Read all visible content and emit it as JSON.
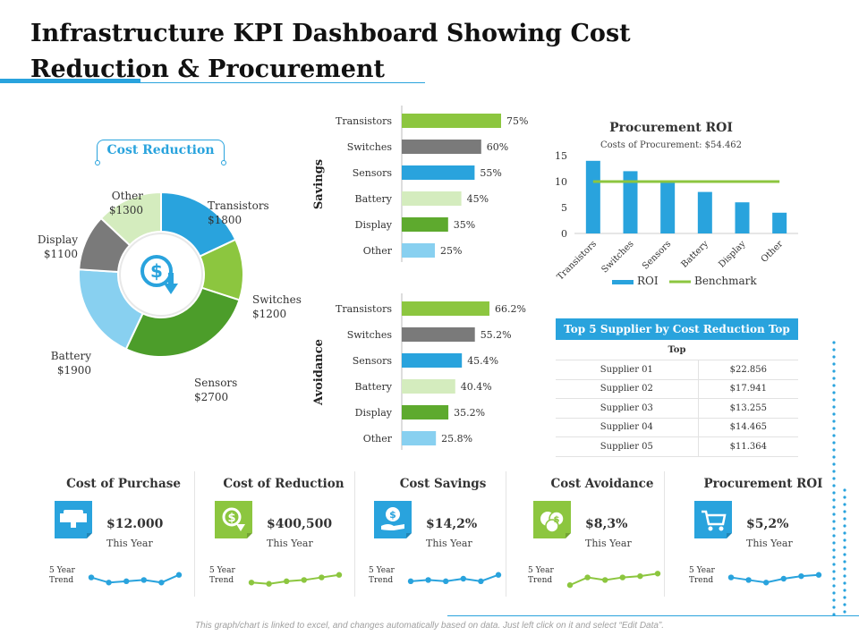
{
  "title": "Infrastructure KPI Dashboard Showing Cost Reduction & Procurement",
  "colors": {
    "blue": "#29a3dd",
    "gray": "#7a7a7a",
    "light_green": "#d4ecbe",
    "green": "#5eaa2e",
    "light_blue": "#88d0f0",
    "lime": "#8cc63f",
    "dark_green": "#4c9d2a"
  },
  "cost_reduction": {
    "label": "Cost Reduction",
    "icon": "dollar-down-icon"
  },
  "footer": "This graph/chart is linked to excel, and changes automatically based on data. Just left click on it and select “Edit Data”.",
  "chart_data": [
    {
      "type": "pie",
      "variant": "donut",
      "labels": [
        "Transistors",
        "Switches",
        "Sensors",
        "Battery",
        "Display",
        "Other"
      ],
      "values": [
        1800,
        1200,
        2700,
        1900,
        1100,
        1300
      ],
      "value_labels": [
        "$1800",
        "$1200",
        "$2700",
        "$1900",
        "$1100",
        "$1300"
      ],
      "colors": [
        "#29a3dd",
        "#8cc63f",
        "#4c9d2a",
        "#88d0f0",
        "#7a7a7a",
        "#d4ecbe"
      ]
    },
    {
      "type": "bar",
      "orientation": "horizontal",
      "title": "Savings",
      "categories": [
        "Transistors",
        "Switches",
        "Sensors",
        "Battery",
        "Display",
        "Other"
      ],
      "values": [
        75,
        60,
        55,
        45,
        35,
        25
      ],
      "value_labels": [
        "75%",
        "60%",
        "55%",
        "45%",
        "35%",
        "25%"
      ],
      "colors": [
        "#8cc63f",
        "#7a7a7a",
        "#29a3dd",
        "#d4ecbe",
        "#5eaa2e",
        "#88d0f0"
      ]
    },
    {
      "type": "bar",
      "orientation": "horizontal",
      "title": "Avoidance",
      "categories": [
        "Transistors",
        "Switches",
        "Sensors",
        "Battery",
        "Display",
        "Other"
      ],
      "values": [
        66.2,
        55.2,
        45.4,
        40.4,
        35.2,
        25.8
      ],
      "value_labels": [
        "66.2%",
        "55.2%",
        "45.4%",
        "40.4%",
        "35.2%",
        "25.8%"
      ],
      "colors": [
        "#8cc63f",
        "#7a7a7a",
        "#29a3dd",
        "#d4ecbe",
        "#5eaa2e",
        "#88d0f0"
      ]
    },
    {
      "type": "bar",
      "title": "Procurement ROI",
      "subtitle": "Costs of Procurement: $54.462",
      "categories": [
        "Transistors",
        "Switches",
        "Sensors",
        "Battery",
        "Display",
        "Other"
      ],
      "series": [
        {
          "name": "ROI",
          "values": [
            14,
            12,
            10,
            8,
            6,
            4
          ],
          "color": "#29a3dd"
        },
        {
          "name": "Benchmark",
          "type": "line",
          "values": [
            10,
            10,
            10,
            10,
            10,
            10
          ],
          "color": "#8cc63f"
        }
      ],
      "ylim": [
        0,
        15
      ],
      "yticks": [
        0,
        5,
        10,
        15
      ],
      "legend": "bottom"
    },
    {
      "type": "table",
      "title": "Top 5 Supplier by Cost Reduction Top",
      "header": "Top",
      "rows": [
        [
          "Supplier 01",
          "$22.856"
        ],
        [
          "Supplier 02",
          "$17.941"
        ],
        [
          "Supplier 03",
          "$13.255"
        ],
        [
          "Supplier 04",
          "$14.465"
        ],
        [
          "Supplier 05",
          "$11.364"
        ]
      ]
    },
    {
      "type": "line",
      "title": "Cost of Purchase",
      "value_label": "$12.000",
      "sub_label": "This Year",
      "trend_label": "5 Year Trend",
      "icon": "computer-devices-icon",
      "icon_color": "#29a3dd",
      "line_color": "#29a3dd",
      "values": [
        5,
        3,
        3.5,
        4,
        3,
        6
      ]
    },
    {
      "type": "line",
      "title": "Cost of Reduction",
      "value_label": "$400,500",
      "sub_label": "This Year",
      "trend_label": "5 Year Trend",
      "icon": "dollar-down-icon",
      "icon_color": "#8cc63f",
      "line_color": "#8cc63f",
      "values": [
        3,
        2.5,
        3.5,
        4,
        5,
        6
      ]
    },
    {
      "type": "line",
      "title": "Cost Savings",
      "value_label": "$14,2%",
      "sub_label": "This Year",
      "trend_label": "5 Year Trend",
      "icon": "hand-dollar-icon",
      "icon_color": "#29a3dd",
      "line_color": "#29a3dd",
      "values": [
        3.5,
        4,
        3.5,
        4.5,
        3.5,
        6
      ]
    },
    {
      "type": "line",
      "title": "Cost Avoidance",
      "value_label": "$8,3%",
      "sub_label": "This Year",
      "trend_label": "5 Year Trend",
      "icon": "coins-icon",
      "icon_color": "#8cc63f",
      "line_color": "#8cc63f",
      "values": [
        2,
        5,
        4,
        5,
        5.5,
        6.5
      ]
    },
    {
      "type": "line",
      "title": "Procurement ROI",
      "value_label": "$5,2%",
      "sub_label": "This Year",
      "trend_label": "5 Year Trend",
      "icon": "cart-icon",
      "icon_color": "#29a3dd",
      "line_color": "#29a3dd",
      "values": [
        5,
        4,
        3,
        4.5,
        5.5,
        6
      ]
    }
  ]
}
